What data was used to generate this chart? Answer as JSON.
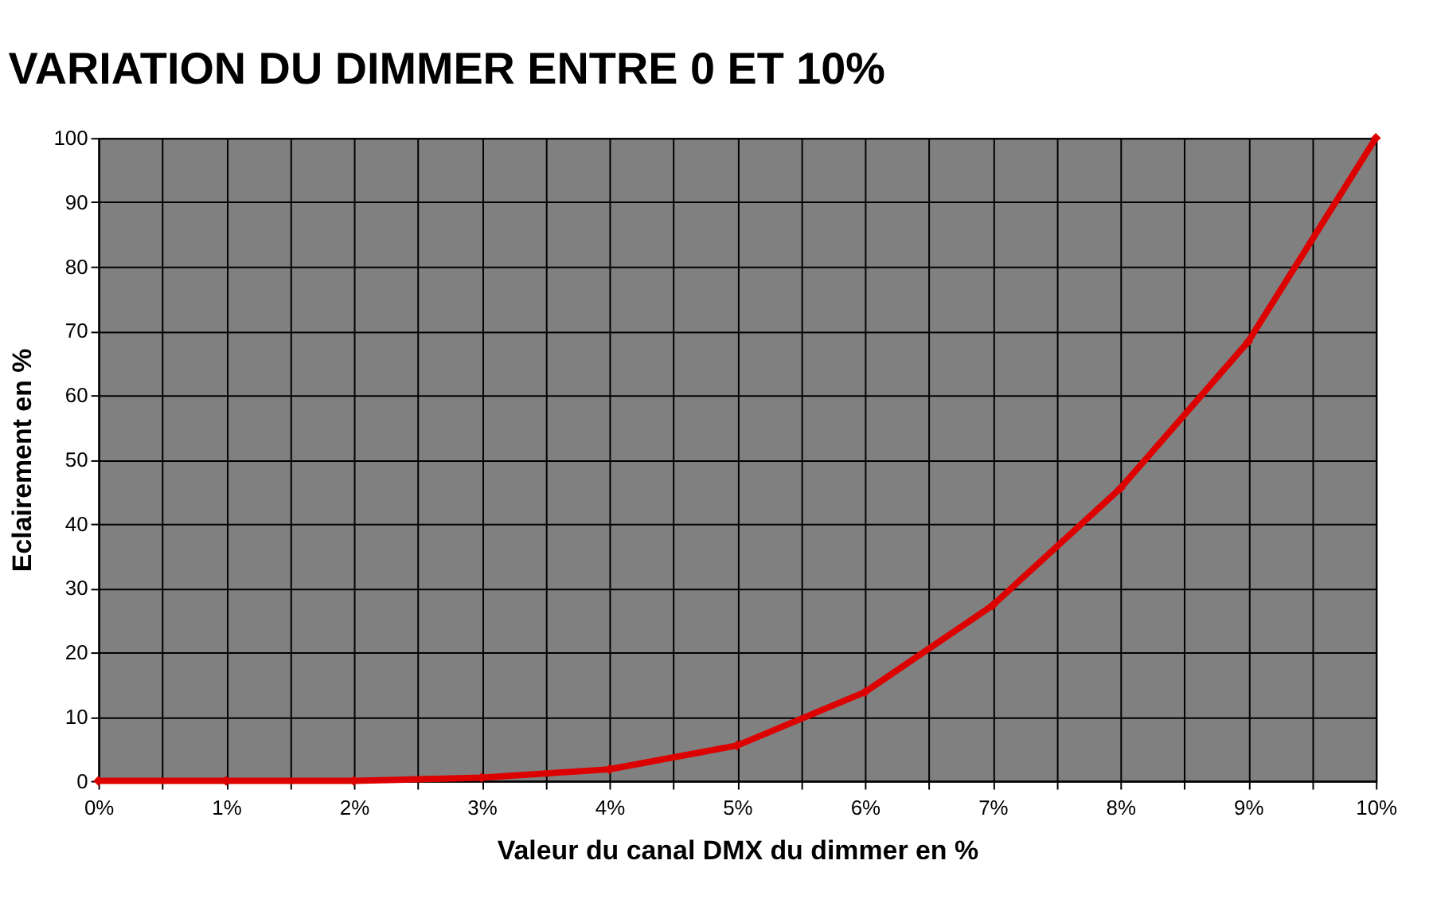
{
  "chart_data": {
    "type": "line",
    "title": "VARIATION DU DIMMER ENTRE 0 ET 10%",
    "xlabel": "Valeur du canal DMX du dimmer en %",
    "ylabel": "Eclairement en %",
    "x": [
      0,
      1,
      2,
      3,
      4,
      5,
      6,
      7,
      8,
      9,
      10
    ],
    "series": [
      {
        "color": "#dd0000",
        "values": [
          0,
          0,
          0,
          0.5,
          1.8,
          5.5,
          13.8,
          27.3,
          45.5,
          68.3,
          100
        ]
      }
    ],
    "xlim": [
      0,
      10
    ],
    "ylim": [
      0,
      100
    ],
    "xticks": [
      {
        "value": 0,
        "label": "0%"
      },
      {
        "value": 0.5,
        "label": null
      },
      {
        "value": 1,
        "label": "1%"
      },
      {
        "value": 1.5,
        "label": null
      },
      {
        "value": 2,
        "label": "2%"
      },
      {
        "value": 2.5,
        "label": null
      },
      {
        "value": 3,
        "label": "3%"
      },
      {
        "value": 3.5,
        "label": null
      },
      {
        "value": 4,
        "label": "4%"
      },
      {
        "value": 4.5,
        "label": null
      },
      {
        "value": 5,
        "label": "5%"
      },
      {
        "value": 5.5,
        "label": null
      },
      {
        "value": 6,
        "label": "6%"
      },
      {
        "value": 6.5,
        "label": null
      },
      {
        "value": 7,
        "label": "7%"
      },
      {
        "value": 7.5,
        "label": null
      },
      {
        "value": 8,
        "label": "8%"
      },
      {
        "value": 8.5,
        "label": null
      },
      {
        "value": 9,
        "label": "9%"
      },
      {
        "value": 9.5,
        "label": null
      },
      {
        "value": 10,
        "label": "10%"
      }
    ],
    "yticks": [
      0,
      10,
      20,
      30,
      40,
      50,
      60,
      70,
      80,
      90,
      100
    ],
    "grid": true,
    "marker": "diamond",
    "line_style": "solid"
  }
}
